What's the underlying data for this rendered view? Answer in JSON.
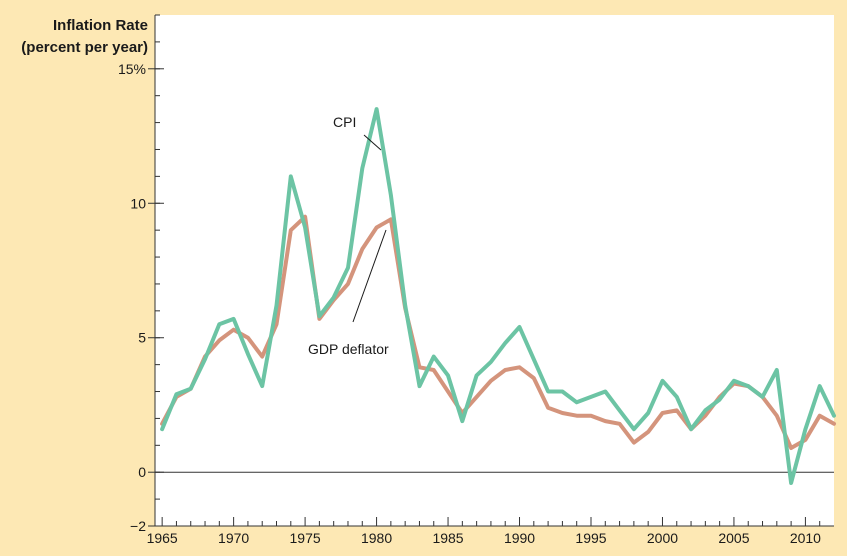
{
  "chart_data": {
    "type": "line",
    "ylabel_line1": "Inflation Rate",
    "ylabel_line2": "(percent per year)",
    "ylim": [
      -2,
      17
    ],
    "xlim": [
      1964.5,
      2012
    ],
    "y_ticks": [
      {
        "value": 15,
        "label": "15%"
      },
      {
        "value": 10,
        "label": "10"
      },
      {
        "value": 5,
        "label": "5"
      },
      {
        "value": 0,
        "label": "0"
      },
      {
        "value": -2,
        "label": "−2"
      }
    ],
    "x_ticks": [
      1965,
      1970,
      1975,
      1980,
      1985,
      1990,
      1995,
      2000,
      2005,
      2010
    ],
    "x": [
      1965,
      1966,
      1967,
      1968,
      1969,
      1970,
      1971,
      1972,
      1973,
      1974,
      1975,
      1976,
      1977,
      1978,
      1979,
      1980,
      1981,
      1982,
      1983,
      1984,
      1985,
      1986,
      1987,
      1988,
      1989,
      1990,
      1991,
      1992,
      1993,
      1994,
      1995,
      1996,
      1997,
      1998,
      1999,
      2000,
      2001,
      2002,
      2003,
      2004,
      2005,
      2006,
      2007,
      2008,
      2009,
      2010,
      2011,
      2012
    ],
    "series": [
      {
        "name": "CPI",
        "color": "#6cc4a4",
        "values": [
          1.6,
          2.9,
          3.1,
          4.2,
          5.5,
          5.7,
          4.4,
          3.2,
          6.2,
          11.0,
          9.1,
          5.8,
          6.5,
          7.6,
          11.3,
          13.5,
          10.3,
          6.2,
          3.2,
          4.3,
          3.6,
          1.9,
          3.6,
          4.1,
          4.8,
          5.4,
          4.2,
          3.0,
          3.0,
          2.6,
          2.8,
          3.0,
          2.3,
          1.6,
          2.2,
          3.4,
          2.8,
          1.6,
          2.3,
          2.7,
          3.4,
          3.2,
          2.8,
          3.8,
          -0.4,
          1.6,
          3.2,
          2.1
        ]
      },
      {
        "name": "GDP deflator",
        "color": "#d4947c",
        "values": [
          1.8,
          2.8,
          3.1,
          4.3,
          4.9,
          5.3,
          5.0,
          4.3,
          5.5,
          9.0,
          9.5,
          5.7,
          6.4,
          7.0,
          8.3,
          9.1,
          9.4,
          6.1,
          3.9,
          3.8,
          3.0,
          2.2,
          2.8,
          3.4,
          3.8,
          3.9,
          3.5,
          2.4,
          2.2,
          2.1,
          2.1,
          1.9,
          1.8,
          1.1,
          1.5,
          2.2,
          2.3,
          1.6,
          2.1,
          2.8,
          3.3,
          3.2,
          2.8,
          2.1,
          0.9,
          1.2,
          2.1,
          1.8
        ]
      }
    ],
    "annotations": [
      {
        "text": "CPI",
        "series": 0
      },
      {
        "text": "GDP deflator",
        "series": 1
      }
    ]
  }
}
